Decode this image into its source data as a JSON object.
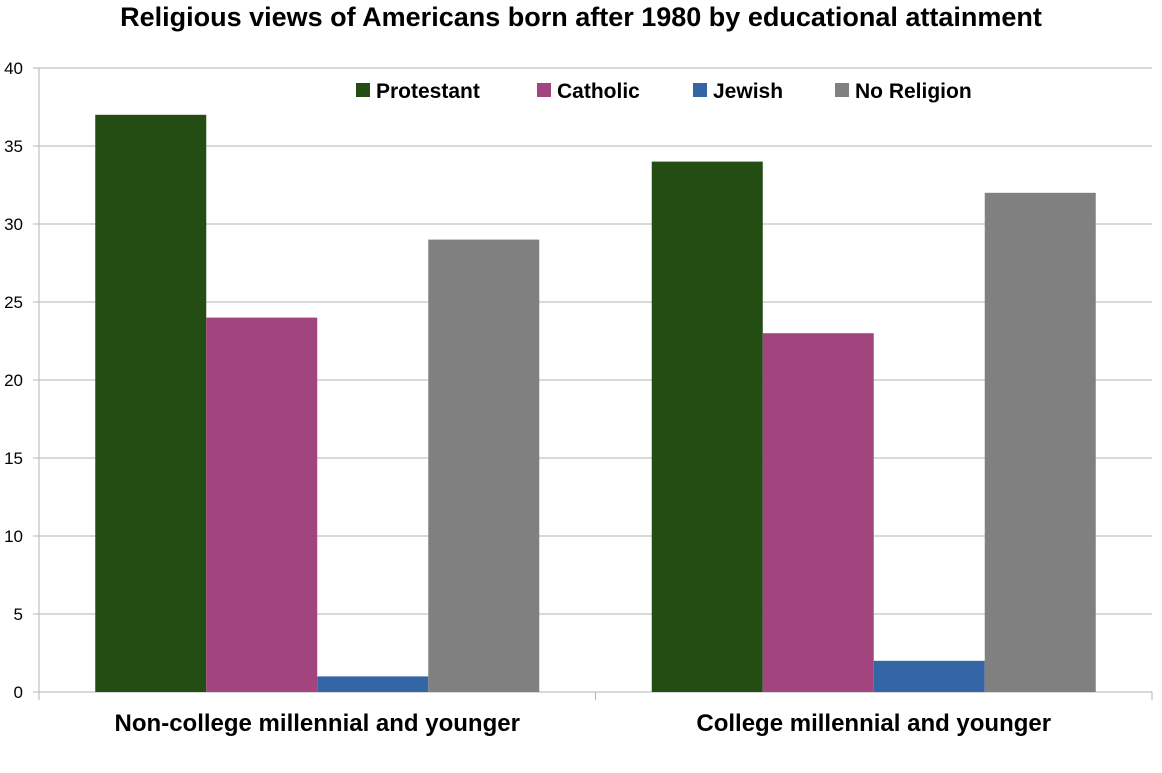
{
  "chart_data": {
    "type": "bar",
    "title": "Religious views of Americans born after 1980 by educational attainment",
    "xlabel": "",
    "ylabel": "",
    "categories": [
      "Non-college millennial and younger",
      "College millennial and younger"
    ],
    "series": [
      {
        "name": "Protestant",
        "color": "#234d13",
        "values": [
          37,
          34
        ]
      },
      {
        "name": "Catholic",
        "color": "#a2457f",
        "values": [
          24,
          23
        ]
      },
      {
        "name": "Jewish",
        "color": "#3465a4",
        "values": [
          1,
          2
        ]
      },
      {
        "name": "No Religion",
        "color": "#808080",
        "values": [
          29,
          32
        ]
      }
    ],
    "ylim": [
      0,
      40
    ],
    "yticks": [
      "0",
      "5",
      "10",
      "15",
      "20",
      "25",
      "30",
      "35",
      "40"
    ],
    "grid": true,
    "legend_position": "top"
  }
}
